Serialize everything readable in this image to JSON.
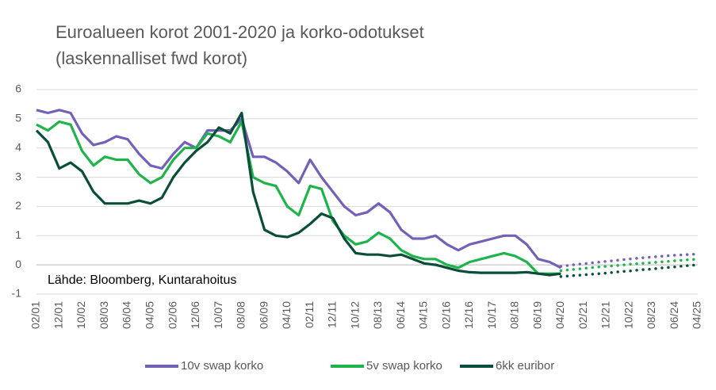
{
  "chart_data": {
    "type": "line",
    "title": "Euroalueen korot 2001-2020 ja korko-odotukset",
    "subtitle": "(laskennalliset fwd korot)",
    "annotation": "Lähde: Bloomberg, Kuntarahoitus",
    "categories": [
      "02/01",
      null,
      "12/01",
      null,
      "10/02",
      null,
      "08/03",
      null,
      "06/04",
      null,
      "04/05",
      null,
      "02/06",
      null,
      "12/06",
      null,
      "10/07",
      null,
      "08/08",
      null,
      "06/09",
      null,
      "04/10",
      null,
      "02/11",
      null,
      "12/11",
      null,
      "10/12",
      null,
      "08/13",
      null,
      "06/14",
      null,
      "04/15",
      null,
      "02/16",
      null,
      "12/16",
      null,
      "10/17",
      null,
      "08/18",
      null,
      "06/19",
      null,
      "04/20",
      null,
      "02/21",
      null,
      "12/21",
      null,
      "10/22",
      null,
      "08/23",
      null,
      "06/24",
      null,
      "04/25"
    ],
    "series": [
      {
        "name": "10v swap korko",
        "color": "#7560b8",
        "values": [
          5.3,
          5.2,
          5.3,
          5.2,
          4.5,
          4.1,
          4.2,
          4.4,
          4.3,
          3.8,
          3.4,
          3.3,
          3.8,
          4.2,
          4.0,
          4.6,
          4.6,
          4.6,
          5.0,
          3.7,
          3.7,
          3.5,
          3.2,
          2.8,
          3.6,
          3.0,
          2.5,
          2.0,
          1.7,
          1.8,
          2.1,
          1.8,
          1.2,
          0.9,
          0.9,
          1.0,
          0.7,
          0.5,
          0.7,
          0.8,
          0.9,
          1.0,
          1.0,
          0.7,
          0.2,
          0.1,
          -0.1,
          null,
          null,
          null,
          null,
          null,
          null,
          null,
          null,
          null,
          null,
          null,
          null
        ],
        "forward_values": [
          null,
          null,
          null,
          null,
          null,
          null,
          null,
          null,
          null,
          null,
          null,
          null,
          null,
          null,
          null,
          null,
          null,
          null,
          null,
          null,
          null,
          null,
          null,
          null,
          null,
          null,
          null,
          null,
          null,
          null,
          null,
          null,
          null,
          null,
          null,
          null,
          null,
          null,
          null,
          null,
          null,
          null,
          null,
          null,
          null,
          null,
          -0.05,
          0.0,
          0.04,
          0.08,
          0.12,
          0.16,
          0.2,
          0.24,
          0.27,
          0.3,
          0.33,
          0.35,
          0.37
        ]
      },
      {
        "name": "5v swap korko",
        "color": "#1fb34b",
        "values": [
          4.8,
          4.6,
          4.9,
          4.8,
          3.9,
          3.4,
          3.7,
          3.6,
          3.6,
          3.1,
          2.8,
          3.0,
          3.6,
          4.0,
          4.0,
          4.5,
          4.4,
          4.2,
          4.9,
          3.0,
          2.8,
          2.7,
          2.0,
          1.7,
          2.7,
          2.6,
          1.5,
          1.0,
          0.7,
          0.8,
          1.1,
          0.9,
          0.5,
          0.3,
          0.2,
          0.2,
          0.0,
          -0.1,
          0.1,
          0.2,
          0.3,
          0.4,
          0.3,
          0.1,
          -0.3,
          -0.3,
          -0.3,
          null,
          null,
          null,
          null,
          null,
          null,
          null,
          null,
          null,
          null,
          null,
          null
        ],
        "forward_values": [
          null,
          null,
          null,
          null,
          null,
          null,
          null,
          null,
          null,
          null,
          null,
          null,
          null,
          null,
          null,
          null,
          null,
          null,
          null,
          null,
          null,
          null,
          null,
          null,
          null,
          null,
          null,
          null,
          null,
          null,
          null,
          null,
          null,
          null,
          null,
          null,
          null,
          null,
          null,
          null,
          null,
          null,
          null,
          null,
          null,
          null,
          -0.2,
          -0.16,
          -0.12,
          -0.08,
          -0.05,
          -0.02,
          0.02,
          0.05,
          0.08,
          0.11,
          0.14,
          0.17,
          0.2
        ]
      },
      {
        "name": "6kk euribor",
        "color": "#0b4d3b",
        "values": [
          4.6,
          4.2,
          3.3,
          3.5,
          3.2,
          2.5,
          2.1,
          2.1,
          2.1,
          2.2,
          2.1,
          2.3,
          3.0,
          3.5,
          3.9,
          4.2,
          4.7,
          4.5,
          5.2,
          2.5,
          1.2,
          1.0,
          0.95,
          1.1,
          1.4,
          1.75,
          1.6,
          0.9,
          0.4,
          0.35,
          0.35,
          0.3,
          0.35,
          0.2,
          0.05,
          0.0,
          -0.1,
          -0.2,
          -0.25,
          -0.27,
          -0.27,
          -0.27,
          -0.27,
          -0.25,
          -0.3,
          -0.35,
          -0.3,
          null,
          null,
          null,
          null,
          null,
          null,
          null,
          null,
          null,
          null,
          null,
          null
        ],
        "forward_values": [
          null,
          null,
          null,
          null,
          null,
          null,
          null,
          null,
          null,
          null,
          null,
          null,
          null,
          null,
          null,
          null,
          null,
          null,
          null,
          null,
          null,
          null,
          null,
          null,
          null,
          null,
          null,
          null,
          null,
          null,
          null,
          null,
          null,
          null,
          null,
          null,
          null,
          null,
          null,
          null,
          null,
          null,
          null,
          null,
          null,
          null,
          -0.4,
          -0.37,
          -0.34,
          -0.31,
          -0.28,
          -0.24,
          -0.21,
          -0.17,
          -0.14,
          -0.1,
          -0.07,
          -0.03,
          0.0
        ]
      }
    ],
    "ylim": [
      -1,
      6
    ],
    "yticks": [
      -1,
      0,
      1,
      2,
      3,
      4,
      5,
      6
    ],
    "grid": true
  }
}
